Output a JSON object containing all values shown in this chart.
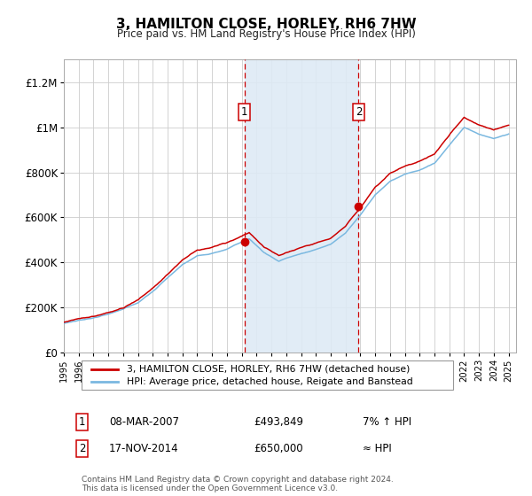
{
  "title": "3, HAMILTON CLOSE, HORLEY, RH6 7HW",
  "subtitle": "Price paid vs. HM Land Registry's House Price Index (HPI)",
  "legend_line1": "3, HAMILTON CLOSE, HORLEY, RH6 7HW (detached house)",
  "legend_line2": "HPI: Average price, detached house, Reigate and Banstead",
  "transaction1_label": "1",
  "transaction1_date": "08-MAR-2007",
  "transaction1_price": "£493,849",
  "transaction1_hpi": "7% ↑ HPI",
  "transaction2_label": "2",
  "transaction2_date": "17-NOV-2014",
  "transaction2_price": "£650,000",
  "transaction2_hpi": "≈ HPI",
  "footnote": "Contains HM Land Registry data © Crown copyright and database right 2024.\nThis data is licensed under the Open Government Licence v3.0.",
  "hpi_color": "#7ab8e0",
  "price_color": "#cc0000",
  "shade_color": "#deeaf5",
  "dashed_color": "#cc0000",
  "ylim_min": 0,
  "ylim_max": 1300000,
  "yticks": [
    0,
    200000,
    400000,
    600000,
    800000,
    1000000,
    1200000
  ],
  "ytick_labels": [
    "£0",
    "£200K",
    "£400K",
    "£600K",
    "£800K",
    "£1M",
    "£1.2M"
  ],
  "vline1_x": 2007.18,
  "vline2_x": 2014.88,
  "sale1_y": 493849,
  "sale2_y": 650000,
  "xlim_min": 1995,
  "xlim_max": 2025.5
}
